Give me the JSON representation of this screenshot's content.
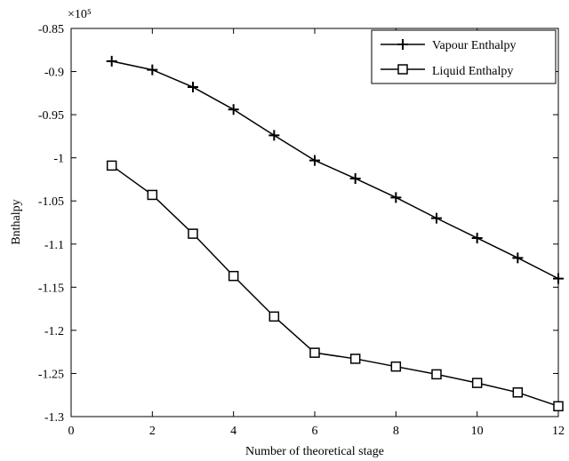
{
  "chart_data": {
    "type": "line",
    "xlabel": "Number of theoretical stage",
    "ylabel": "Bnthalpy",
    "y_multiplier_label": "×10⁵",
    "xlim": [
      0,
      12
    ],
    "ylim": [
      -1.3,
      -0.85
    ],
    "xticks": [
      0,
      2,
      4,
      6,
      8,
      10,
      12
    ],
    "yticks": [
      -0.85,
      -0.9,
      -0.95,
      -1,
      -1.05,
      -1.1,
      -1.15,
      -1.2,
      -1.25,
      -1.3
    ],
    "xtick_labels": [
      "0",
      "2",
      "4",
      "6",
      "8",
      "10",
      "12"
    ],
    "ytick_labels": [
      "-0.85",
      "-0.9",
      "-0.95",
      "-1",
      "-1.05",
      "-1.1",
      "-1.15",
      "-1.2",
      "-1.25",
      "-1.3"
    ],
    "grid": false,
    "legend_position": "top-right",
    "x": [
      1,
      2,
      3,
      4,
      5,
      6,
      7,
      8,
      9,
      10,
      11,
      12
    ],
    "series": [
      {
        "name": "Vapour Enthalpy",
        "marker": "plus",
        "values": [
          -0.888,
          -0.898,
          -0.918,
          -0.944,
          -0.974,
          -1.003,
          -1.024,
          -1.046,
          -1.07,
          -1.093,
          -1.116,
          -1.14
        ]
      },
      {
        "name": "Liquid Enthalpy",
        "marker": "square",
        "values": [
          -1.009,
          -1.043,
          -1.088,
          -1.137,
          -1.184,
          -1.226,
          -1.233,
          -1.242,
          -1.251,
          -1.261,
          -1.272,
          -1.288
        ]
      }
    ]
  }
}
